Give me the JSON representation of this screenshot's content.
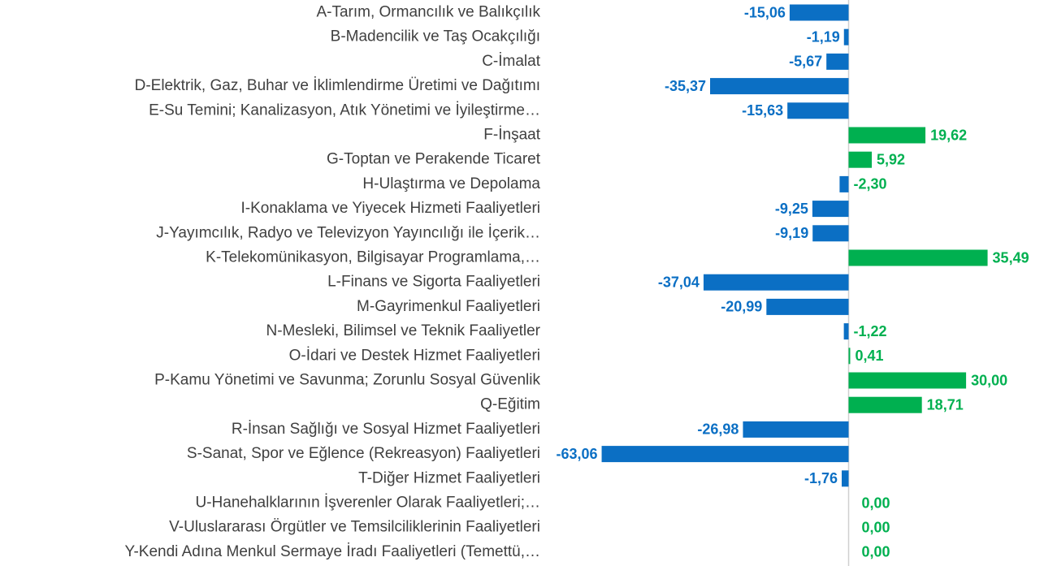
{
  "chart_data": {
    "type": "barh",
    "categories": [
      "A-Tarım, Ormancılık ve Balıkçılık",
      "B-Madencilik ve Taş Ocakçılığı",
      "C-İmalat",
      "D-Elektrik, Gaz, Buhar ve İklimlendirme Üretimi ve Dağıtımı",
      "E-Su Temini; Kanalizasyon, Atık Yönetimi ve İyileştirme…",
      "F-İnşaat",
      "G-Toptan ve Perakende Ticaret",
      "H-Ulaştırma ve Depolama",
      "I-Konaklama ve Yiyecek Hizmeti Faaliyetleri",
      "J-Yayımcılık, Radyo ve Televizyon Yayıncılığı ile İçerik…",
      "K-Telekomünikasyon, Bilgisayar Programlama,…",
      "L-Finans ve Sigorta Faaliyetleri",
      "M-Gayrimenkul Faaliyetleri",
      "N-Mesleki, Bilimsel ve Teknik Faaliyetler",
      "O-İdari ve Destek Hizmet Faaliyetleri",
      "P-Kamu Yönetimi ve Savunma; Zorunlu Sosyal Güvenlik",
      "Q-Eğitim",
      "R-İnsan Sağlığı ve Sosyal Hizmet Faaliyetleri",
      "S-Sanat, Spor ve Eğlence (Rekreasyon) Faaliyetleri",
      "T-Diğer Hizmet Faaliyetleri",
      "U-Hanehalklarının İşverenler Olarak Faaliyetleri;…",
      "V-Uluslararası Örgütler ve Temsilciliklerinin Faaliyetleri",
      "Y-Kendi Adına Menkul Sermaye İradı Faaliyetleri (Temettü,…"
    ],
    "values": [
      -15.06,
      -1.19,
      -5.67,
      -35.37,
      -15.63,
      19.62,
      5.92,
      -2.3,
      -9.25,
      -9.19,
      35.49,
      -37.04,
      -20.99,
      -1.22,
      0.41,
      30,
      18.71,
      -26.98,
      -63.06,
      -1.76,
      0,
      0,
      0
    ],
    "value_labels": [
      "-15,06",
      "-1,19",
      "-5,67",
      "-35,37",
      "-15,63",
      "19,62",
      "5,92",
      "-2,30",
      "-9,25",
      "-9,19",
      "35,49",
      "-37,04",
      "-20,99",
      "-1,22",
      "0,41",
      "30,00",
      "18,71",
      "-26,98",
      "-63,06",
      "-1,76",
      "0,00",
      "0,00",
      "0,00"
    ],
    "colors": [
      "#0b6fc4",
      "#0b6fc4",
      "#0b6fc4",
      "#0b6fc4",
      "#0b6fc4",
      "#00b050",
      "#00b050",
      "#0b6fc4",
      "#0b6fc4",
      "#0b6fc4",
      "#00b050",
      "#0b6fc4",
      "#0b6fc4",
      "#0b6fc4",
      "#00b050",
      "#00b050",
      "#00b050",
      "#0b6fc4",
      "#0b6fc4",
      "#0b6fc4",
      "#00b050",
      "#00b050",
      "#00b050"
    ],
    "label_colors": [
      "#0b6fc4",
      "#0b6fc4",
      "#0b6fc4",
      "#0b6fc4",
      "#0b6fc4",
      "#00b050",
      "#00b050",
      "#00b050",
      "#0b6fc4",
      "#0b6fc4",
      "#00b050",
      "#0b6fc4",
      "#0b6fc4",
      "#00b050",
      "#00b050",
      "#00b050",
      "#00b050",
      "#0b6fc4",
      "#0b6fc4",
      "#0b6fc4",
      "#00b050",
      "#00b050",
      "#00b050"
    ]
  }
}
